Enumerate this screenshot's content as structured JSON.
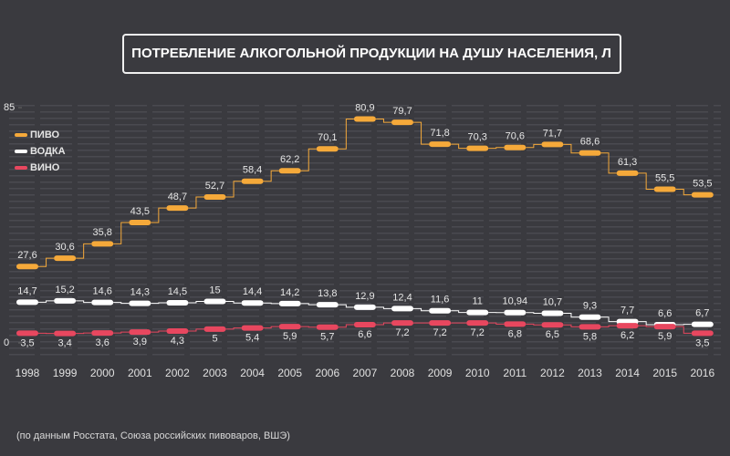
{
  "chart_data": {
    "type": "step-line",
    "title": "ПОТРЕБЛЕНИЕ АЛКОГОЛЬНОЙ ПРОДУКЦИИ НА ДУШУ НАСЕЛЕНИЯ, Л",
    "source": "(по данным Росстата, Союза российских пивоваров, ВШЭ)",
    "categories": [
      "1998",
      "1999",
      "2000",
      "2001",
      "2002",
      "2003",
      "2004",
      "2005",
      "2006",
      "2007",
      "2008",
      "2009",
      "2010",
      "2011",
      "2012",
      "2013",
      "2014",
      "2015",
      "2016"
    ],
    "ylim": [
      0,
      85
    ],
    "yticks": [
      0,
      85
    ],
    "series": [
      {
        "name": "ПИВО",
        "color": "#f5a93a",
        "values": [
          27.6,
          30.6,
          35.8,
          43.5,
          48.7,
          52.7,
          58.4,
          62.2,
          70.1,
          80.9,
          79.7,
          71.8,
          70.3,
          70.6,
          71.7,
          68.6,
          61.3,
          55.5,
          53.5
        ],
        "value_labels": [
          "27,6",
          "30,6",
          "35,8",
          "43,5",
          "48,7",
          "52,7",
          "58,4",
          "62,2",
          "70,1",
          "80,9",
          "79,7",
          "71,8",
          "70,3",
          "70,6",
          "71,7",
          "68,6",
          "61,3",
          "55,5",
          "53,5"
        ]
      },
      {
        "name": "ВОДКА",
        "color": "#ffffff",
        "values": [
          14.7,
          15.2,
          14.6,
          14.3,
          14.5,
          15,
          14.4,
          14.2,
          13.8,
          12.9,
          12.4,
          11.6,
          11,
          10.94,
          10.7,
          9.3,
          7.7,
          6.6,
          6.7
        ],
        "value_labels": [
          "14,7",
          "15,2",
          "14,6",
          "14,3",
          "14,5",
          "15",
          "14,4",
          "14,2",
          "13,8",
          "12,9",
          "12,4",
          "11,6",
          "11",
          "10,94",
          "10,7",
          "9,3",
          "7,7",
          "6,6",
          "6,7"
        ]
      },
      {
        "name": "ВИНО",
        "color": "#e8475f",
        "values": [
          3.5,
          3.4,
          3.6,
          3.9,
          4.3,
          5,
          5.4,
          5.9,
          5.7,
          6.6,
          7.2,
          7.2,
          7.2,
          6.8,
          6.5,
          5.8,
          6.2,
          5.9,
          3.5
        ],
        "value_labels": [
          "3,5",
          "3,4",
          "3,6",
          "3,9",
          "4,3",
          "5",
          "5,4",
          "5,9",
          "5,7",
          "6,6",
          "7,2",
          "7,2",
          "7,2",
          "6,8",
          "6,5",
          "5,8",
          "6,2",
          "5,9",
          "3,5"
        ]
      }
    ]
  }
}
